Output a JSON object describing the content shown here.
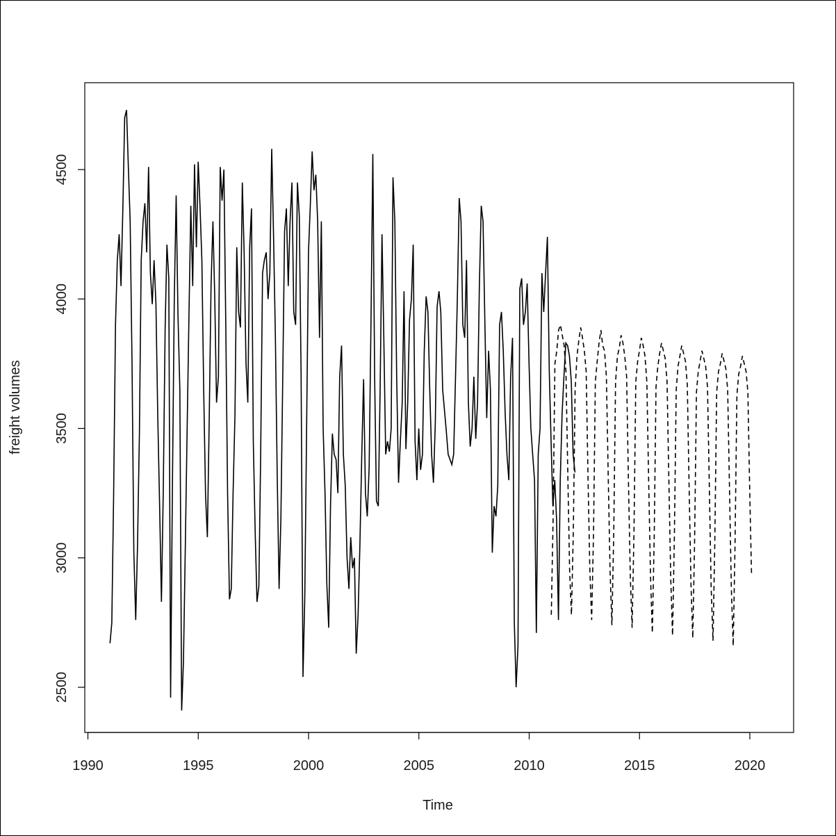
{
  "chart_data": {
    "type": "line",
    "title": "",
    "xlabel": "Time",
    "ylabel": "freight volumes",
    "xlim": [
      1990,
      2022
    ],
    "ylim": [
      2400,
      4750
    ],
    "x_ticks": [
      1990,
      1995,
      2000,
      2005,
      2010,
      2015,
      2020
    ],
    "y_ticks": [
      2500,
      3000,
      3500,
      4000,
      4500
    ],
    "grid": false,
    "legend": "none",
    "series": [
      {
        "style": "solid",
        "color": "#000000",
        "start": 1991.0,
        "step": 0.0833,
        "values": [
          2670,
          2750,
          3240,
          3900,
          4150,
          4250,
          4050,
          4350,
          4700,
          4730,
          4510,
          4300,
          3750,
          3020,
          2760,
          3050,
          3480,
          4150,
          4300,
          4370,
          4180,
          4510,
          4100,
          3980,
          4150,
          3980,
          3550,
          3200,
          2830,
          3250,
          3880,
          4210,
          4080,
          2460,
          3300,
          4000,
          4400,
          3940,
          3650,
          2410,
          2600,
          3050,
          3500,
          3950,
          4360,
          4050,
          4520,
          4200,
          4530,
          4360,
          4150,
          3650,
          3240,
          3080,
          3540,
          4050,
          4300,
          4010,
          3600,
          3700,
          4510,
          4380,
          4500,
          3900,
          3250,
          2840,
          2880,
          3250,
          3550,
          4200,
          3950,
          3890,
          4450,
          4180,
          3750,
          3600,
          4200,
          4350,
          3450,
          3100,
          2830,
          2890,
          3400,
          4100,
          4150,
          4180,
          4000,
          4100,
          4580,
          4250,
          3850,
          3320,
          2880,
          3150,
          3700,
          4260,
          4350,
          4050,
          4300,
          4450,
          3950,
          3900,
          4450,
          4320,
          3700,
          2540,
          2850,
          3500,
          4180,
          4360,
          4570,
          4420,
          4480,
          4300,
          3850,
          4300,
          3500,
          3250,
          2900,
          2730,
          3200,
          3480,
          3400,
          3380,
          3250,
          3700,
          3820,
          3400,
          3280,
          3000,
          2880,
          3080,
          2960,
          3000,
          2630,
          2780,
          3050,
          3400,
          3690,
          3250,
          3160,
          3350,
          3900,
          4560,
          3700,
          3220,
          3200,
          3650,
          4250,
          3850,
          3400,
          3450,
          3410,
          3500,
          4470,
          4300,
          3700,
          3290,
          3450,
          3600,
          4030,
          3420,
          3600,
          3920,
          4000,
          4210,
          3450,
          3300,
          3500,
          3340,
          3400,
          3800,
          4010,
          3950,
          3650,
          3400,
          3290,
          3520,
          3970,
          4030,
          3950,
          3650,
          3570,
          3490,
          3400,
          3380,
          3360,
          3400,
          3700,
          4000,
          4390,
          4300,
          3900,
          3850,
          4150,
          3600,
          3430,
          3500,
          3700,
          3460,
          3600,
          4050,
          4360,
          4300,
          3900,
          3540,
          3800,
          3650,
          3020,
          3200,
          3160,
          3280,
          3900,
          3950,
          3800,
          3560,
          3400,
          3300,
          3700,
          3850,
          2750,
          2500,
          2660,
          4040,
          4080,
          3900,
          3950,
          4060,
          3750,
          3500,
          3400,
          3300,
          2710,
          3400,
          3500,
          4100,
          3950,
          4100,
          4240,
          3720,
          3450,
          3200,
          3300,
          3150,
          2760,
          3300,
          3560,
          3700,
          3830,
          3820,
          3780,
          3680,
          3400,
          3330
        ]
      },
      {
        "style": "dashed",
        "color": "#000000",
        "start": 2011.0,
        "step": 0.0833,
        "values": [
          2780,
          3150,
          3750,
          3800,
          3880,
          3900,
          3860,
          3820,
          3720,
          3320,
          2950,
          2780,
          3100,
          3650,
          3780,
          3840,
          3890,
          3850,
          3800,
          3720,
          3320,
          2950,
          2760,
          3100,
          3680,
          3760,
          3830,
          3880,
          3820,
          3800,
          3700,
          3320,
          2950,
          2740,
          3100,
          3680,
          3780,
          3810,
          3860,
          3830,
          3780,
          3700,
          3300,
          2930,
          2730,
          3100,
          3680,
          3760,
          3800,
          3850,
          3820,
          3780,
          3680,
          3300,
          2930,
          2710,
          3080,
          3660,
          3740,
          3790,
          3830,
          3800,
          3770,
          3680,
          3300,
          2920,
          2700,
          3080,
          3650,
          3740,
          3780,
          3820,
          3790,
          3760,
          3670,
          3280,
          2900,
          2690,
          3060,
          3640,
          3720,
          3760,
          3800,
          3770,
          3740,
          3660,
          3280,
          2890,
          2680,
          3060,
          3640,
          3720,
          3750,
          3790,
          3760,
          3730,
          3650,
          3260,
          2880,
          2660,
          3050,
          3630,
          3710,
          3740,
          3780,
          3750,
          3720,
          3640,
          3250,
          2930
        ]
      }
    ]
  }
}
